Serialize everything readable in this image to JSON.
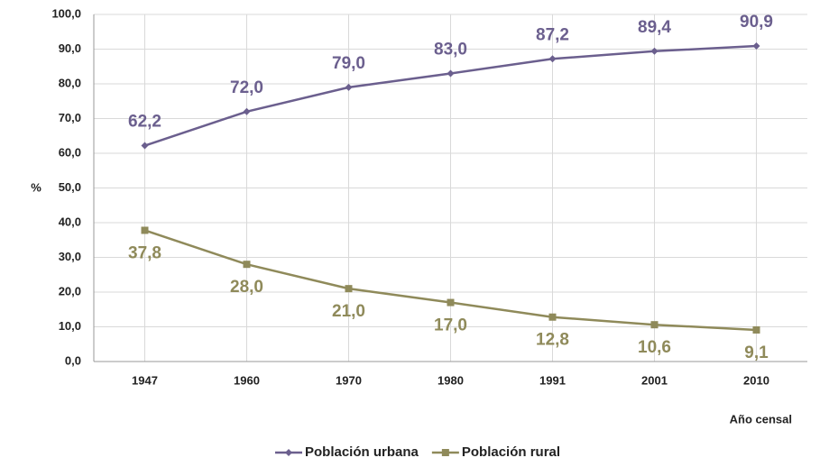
{
  "chart_data": {
    "type": "line",
    "categories": [
      "1947",
      "1960",
      "1970",
      "1980",
      "1991",
      "2001",
      "2010"
    ],
    "y_label": "%",
    "x_label": "Año censal",
    "series": [
      {
        "name": "Población urbana",
        "color": "#6b5f8e",
        "marker": "diamond",
        "values": [
          62.2,
          72.0,
          79.0,
          83.0,
          87.2,
          89.4,
          90.9
        ],
        "value_labels": [
          "62,2",
          "72,0",
          "79,0",
          "83,0",
          "87,2",
          "89,4",
          "90,9"
        ]
      },
      {
        "name": "Población rural",
        "color": "#8f8a5a",
        "marker": "square",
        "values": [
          37.8,
          28.0,
          21.0,
          17.0,
          12.8,
          10.6,
          9.1
        ],
        "value_labels": [
          "37,8",
          "28,0",
          "21,0",
          "17,0",
          "12,8",
          "10,6",
          "9,1"
        ]
      }
    ],
    "ylim": [
      0,
      100
    ],
    "yticks": [
      {
        "value": 0,
        "label": "0,0"
      },
      {
        "value": 10,
        "label": "10,0"
      },
      {
        "value": 20,
        "label": "20,0"
      },
      {
        "value": 30,
        "label": "30,0"
      },
      {
        "value": 40,
        "label": "40,0"
      },
      {
        "value": 50,
        "label": "50,0"
      },
      {
        "value": 60,
        "label": "60,0"
      },
      {
        "value": 70,
        "label": "70,0"
      },
      {
        "value": 80,
        "label": "80,0"
      },
      {
        "value": 90,
        "label": "90,0"
      },
      {
        "value": 100,
        "label": "100,0"
      }
    ],
    "grid": true,
    "legend": "bottom"
  }
}
